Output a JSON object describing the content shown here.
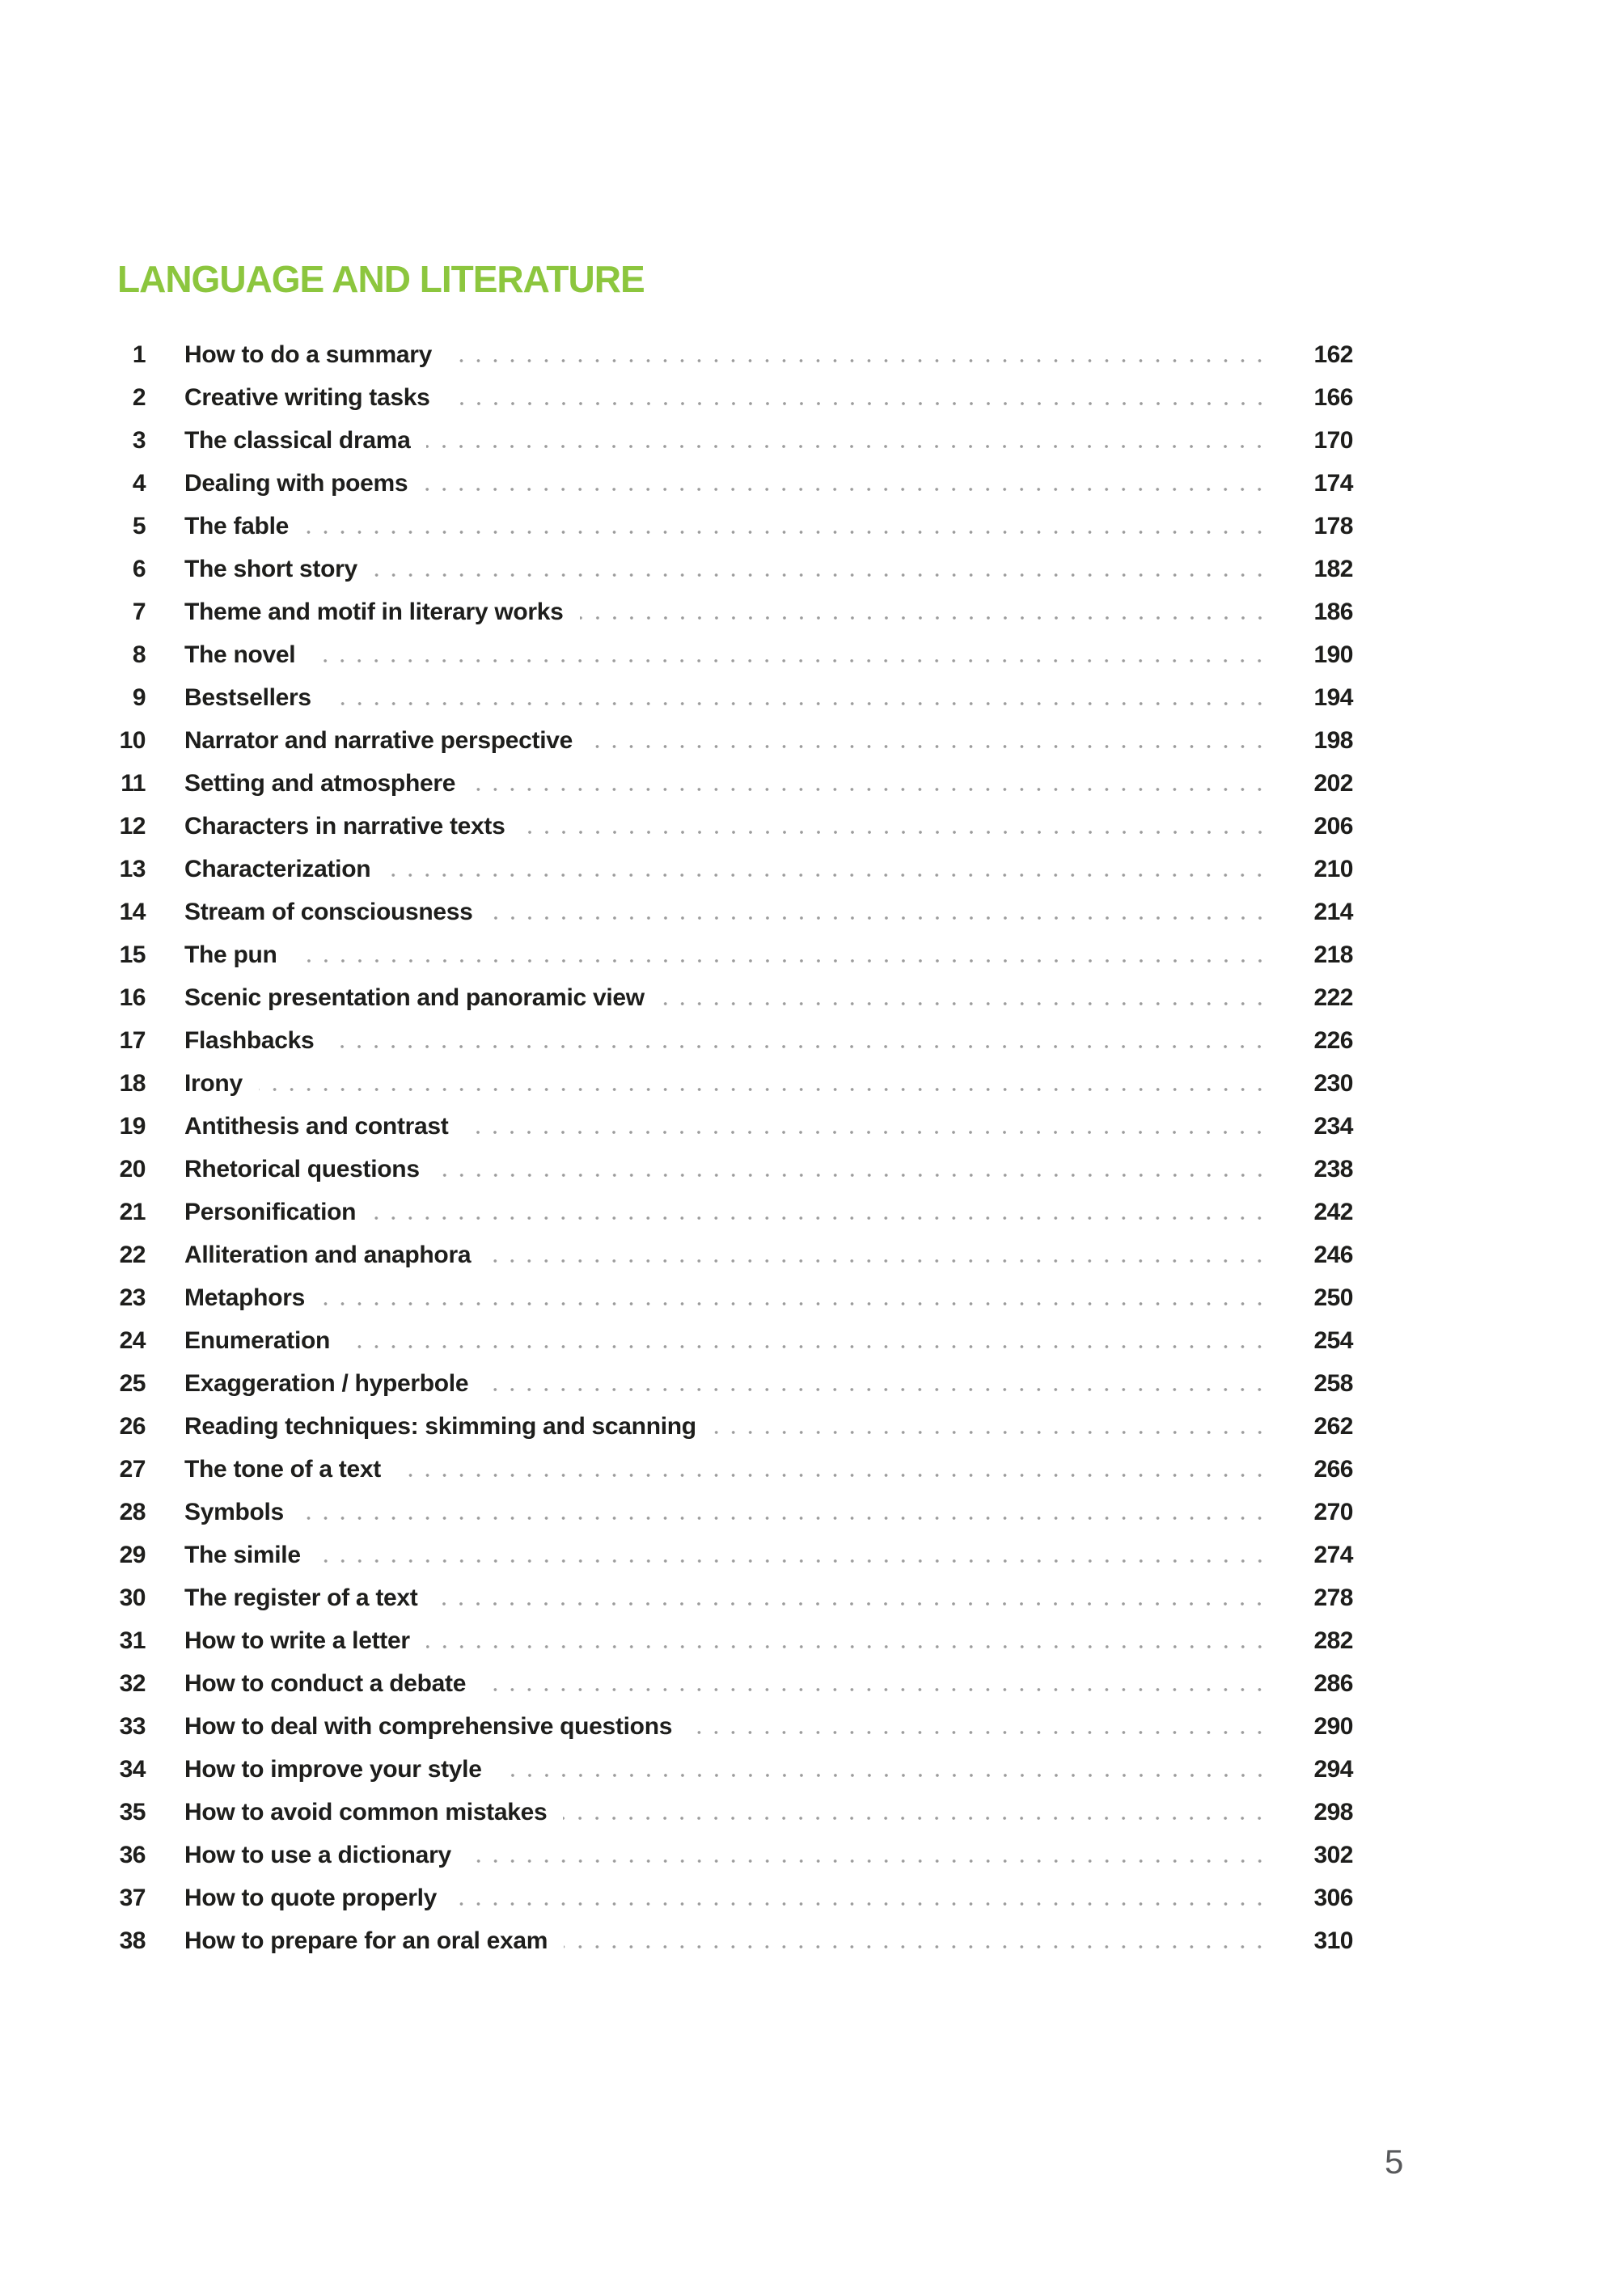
{
  "page": {
    "section_title": "LANGUAGE AND LITERATURE",
    "page_number": "5",
    "colors": {
      "accent_green": "#8cc63e",
      "text_black": "#1e1e1c",
      "leader_dots_gray": "#9c9c9c",
      "folio_gray": "#58595b"
    }
  },
  "toc": {
    "entries": [
      {
        "num": "1",
        "title": "How to do a summary",
        "page": "162"
      },
      {
        "num": "2",
        "title": "Creative writing tasks",
        "page": "166"
      },
      {
        "num": "3",
        "title": "The classical drama",
        "page": "170"
      },
      {
        "num": "4",
        "title": "Dealing with poems",
        "page": "174"
      },
      {
        "num": "5",
        "title": "The fable",
        "page": "178"
      },
      {
        "num": "6",
        "title": "The short story",
        "page": "182"
      },
      {
        "num": "7",
        "title": "Theme and motif in literary works",
        "page": "186"
      },
      {
        "num": "8",
        "title": "The novel",
        "page": "190"
      },
      {
        "num": "9",
        "title": "Bestsellers",
        "page": "194"
      },
      {
        "num": "10",
        "title": "Narrator and narrative perspective",
        "page": "198"
      },
      {
        "num": "11",
        "title": "Setting and atmosphere",
        "page": "202"
      },
      {
        "num": "12",
        "title": "Characters in narrative texts",
        "page": "206"
      },
      {
        "num": "13",
        "title": "Characterization",
        "page": "210"
      },
      {
        "num": "14",
        "title": "Stream of consciousness",
        "page": "214"
      },
      {
        "num": "15",
        "title": "The pun",
        "page": "218"
      },
      {
        "num": "16",
        "title": "Scenic presentation and panoramic view",
        "page": "222"
      },
      {
        "num": "17",
        "title": "Flashbacks",
        "page": "226"
      },
      {
        "num": "18",
        "title": "Irony",
        "page": "230"
      },
      {
        "num": "19",
        "title": "Antithesis and contrast",
        "page": "234"
      },
      {
        "num": "20",
        "title": "Rhetorical questions",
        "page": "238"
      },
      {
        "num": "21",
        "title": "Personification",
        "page": "242"
      },
      {
        "num": "22",
        "title": "Alliteration and anaphora",
        "page": "246"
      },
      {
        "num": "23",
        "title": "Metaphors",
        "page": "250"
      },
      {
        "num": "24",
        "title": "Enumeration",
        "page": "254"
      },
      {
        "num": "25",
        "title": "Exaggeration / hyperbole",
        "page": "258"
      },
      {
        "num": "26",
        "title": "Reading techniques: skimming and scanning",
        "page": "262"
      },
      {
        "num": "27",
        "title": "The tone of a text",
        "page": "266"
      },
      {
        "num": "28",
        "title": "Symbols",
        "page": "270"
      },
      {
        "num": "29",
        "title": "The simile",
        "page": "274"
      },
      {
        "num": "30",
        "title": "The register of a text",
        "page": "278"
      },
      {
        "num": "31",
        "title": "How to write a letter",
        "page": "282"
      },
      {
        "num": "32",
        "title": "How to conduct a debate",
        "page": "286"
      },
      {
        "num": "33",
        "title": "How to deal with comprehensive questions",
        "page": "290"
      },
      {
        "num": "34",
        "title": "How to improve your style",
        "page": "294"
      },
      {
        "num": "35",
        "title": "How to avoid common mistakes",
        "page": "298"
      },
      {
        "num": "36",
        "title": "How to use a dictionary",
        "page": "302"
      },
      {
        "num": "37",
        "title": "How to quote properly",
        "page": "306"
      },
      {
        "num": "38",
        "title": "How to prepare for an oral exam",
        "page": "310"
      }
    ]
  }
}
